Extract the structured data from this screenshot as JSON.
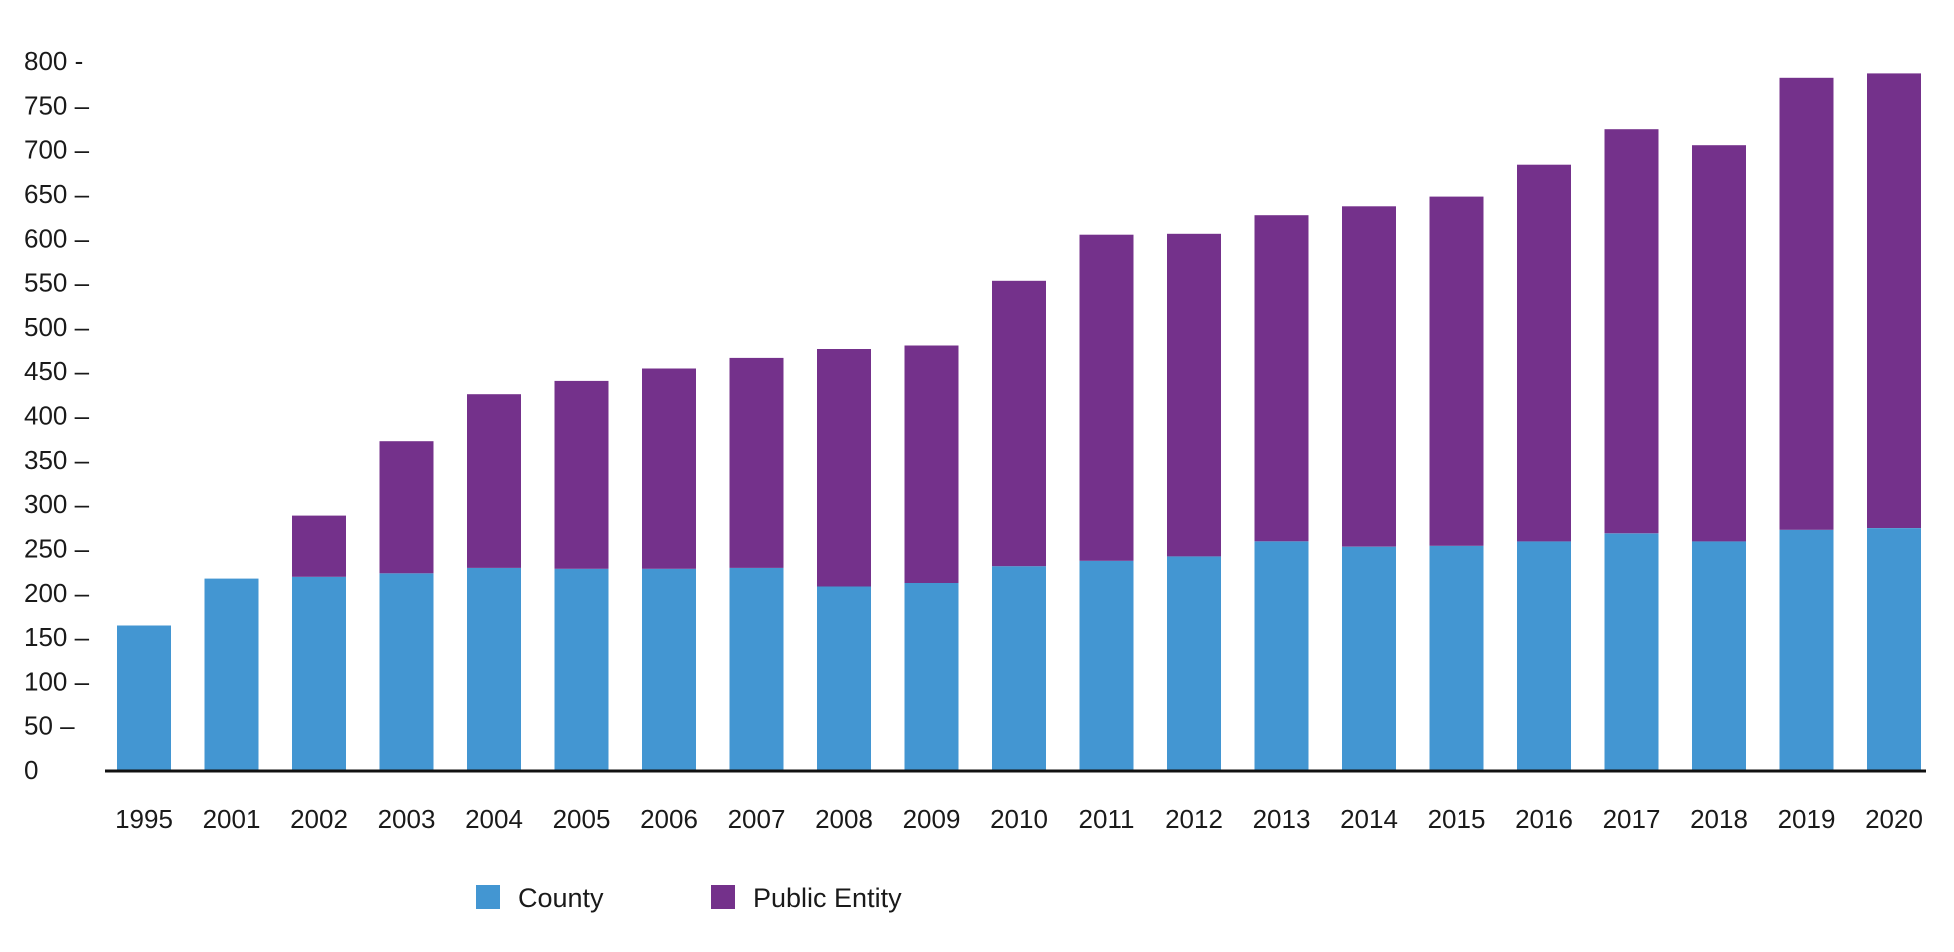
{
  "chart_data": {
    "type": "bar",
    "stacked": true,
    "categories": [
      "1995",
      "2001",
      "2002",
      "2003",
      "2004",
      "2005",
      "2006",
      "2007",
      "2008",
      "2009",
      "2010",
      "2011",
      "2012",
      "2013",
      "2014",
      "2015",
      "2016",
      "2017",
      "2018",
      "2019",
      "2020"
    ],
    "series": [
      {
        "name": "County",
        "color": "#4396d2",
        "values": [
          163,
          216,
          218,
          222,
          228,
          227,
          227,
          228,
          207,
          211,
          230,
          236,
          241,
          258,
          252,
          253,
          258,
          267,
          258,
          271,
          273
        ]
      },
      {
        "name": "Public Entity",
        "color": "#74318b",
        "values": [
          0,
          0,
          69,
          149,
          196,
          212,
          226,
          237,
          268,
          268,
          322,
          368,
          364,
          368,
          384,
          394,
          425,
          456,
          447,
          510,
          513
        ]
      }
    ],
    "y_ticks": [
      "800 -",
      "750 –",
      "700 –",
      "650 –",
      "600 –",
      "550 –",
      "500 –",
      "450 –",
      "400 –",
      "350 –",
      "300 –",
      "250 –",
      "200 –",
      "150 –",
      "100 –",
      "50 –",
      "0"
    ],
    "y_tick_values": [
      800,
      750,
      700,
      650,
      600,
      550,
      500,
      450,
      400,
      350,
      300,
      250,
      200,
      150,
      100,
      50,
      0
    ],
    "ylim": [
      0,
      800
    ],
    "legend_position": "bottom-left",
    "grid": false
  }
}
